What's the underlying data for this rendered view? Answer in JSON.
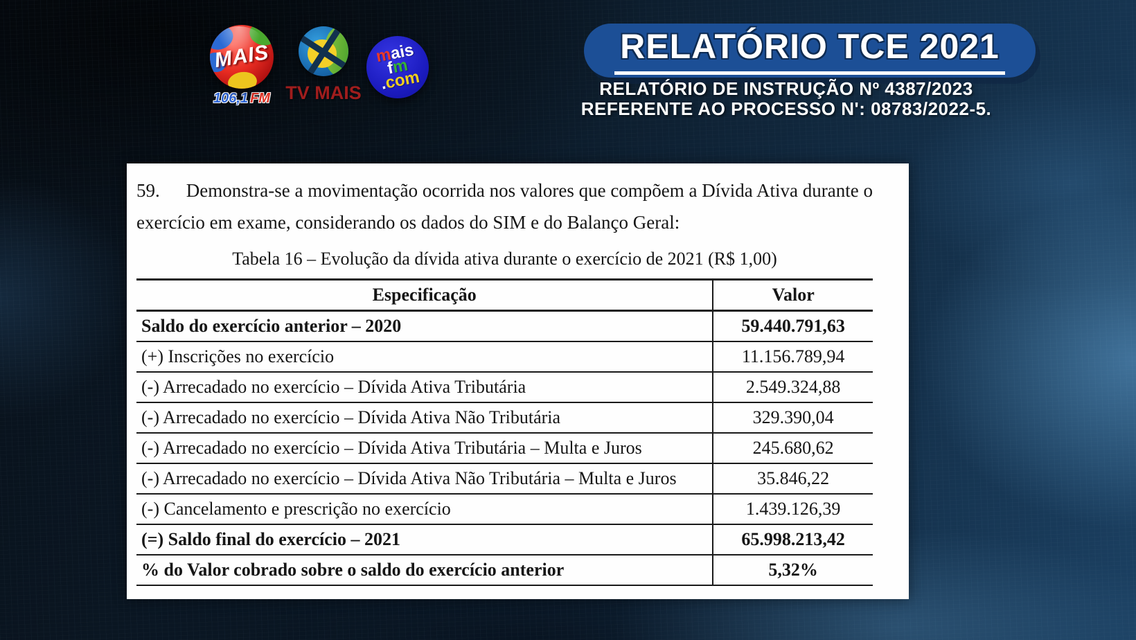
{
  "page": {
    "background_dark": "#0b1722",
    "accent_blue": "#1c4f96"
  },
  "logos": {
    "radio": {
      "wordmark": "MAIS",
      "freq": "106,1",
      "fm": "FM"
    },
    "tv": {
      "label": "TV MAIS"
    },
    "web": {
      "m": "m",
      "ais": "ais",
      "f": "f",
      "m2": "m",
      "dot": ".",
      "com": "com"
    }
  },
  "header": {
    "title": "RELATÓRIO TCE 2021",
    "subtitle_line1": "RELATÓRIO DE INSTRUÇÃO Nº 4387/2023",
    "subtitle_line2": "REFERENTE AO PROCESSO N': 08783/2022-5."
  },
  "doc": {
    "paragraph_number": "59.",
    "paragraph_text": "Demonstra-se a movimentação ocorrida nos valores que compõem a Dívida Ativa durante o exercício em exame, considerando os dados do SIM e do Balanço Geral:",
    "table_caption": "Tabela 16 – Evolução da dívida ativa durante o exercício de 2021 (R$ 1,00)",
    "table": {
      "col_especificacao": "Especificação",
      "col_valor": "Valor",
      "rows": [
        {
          "label": "Saldo do exercício anterior – 2020",
          "value": "59.440.791,63",
          "bold": true
        },
        {
          "label": "(+) Inscrições no exercício",
          "value": "11.156.789,94",
          "bold": false
        },
        {
          "label": "(-) Arrecadado no exercício – Dívida Ativa Tributária",
          "value": "2.549.324,88",
          "bold": false
        },
        {
          "label": "(-) Arrecadado no exercício – Dívida Ativa Não Tributária",
          "value": "329.390,04",
          "bold": false
        },
        {
          "label": "(-) Arrecadado no exercício – Dívida Ativa Tributária – Multa e Juros",
          "value": "245.680,62",
          "bold": false
        },
        {
          "label": "(-) Arrecadado no exercício – Dívida Ativa Não Tributária – Multa e Juros",
          "value": "35.846,22",
          "bold": false
        },
        {
          "label": "(-) Cancelamento e prescrição no exercício",
          "value": "1.439.126,39",
          "bold": false
        },
        {
          "label": "(=) Saldo final do exercício – 2021",
          "value": "65.998.213,42",
          "bold": true
        },
        {
          "label": "% do Valor cobrado sobre o saldo do exercício anterior",
          "value": "5,32%",
          "bold": true
        }
      ]
    }
  }
}
